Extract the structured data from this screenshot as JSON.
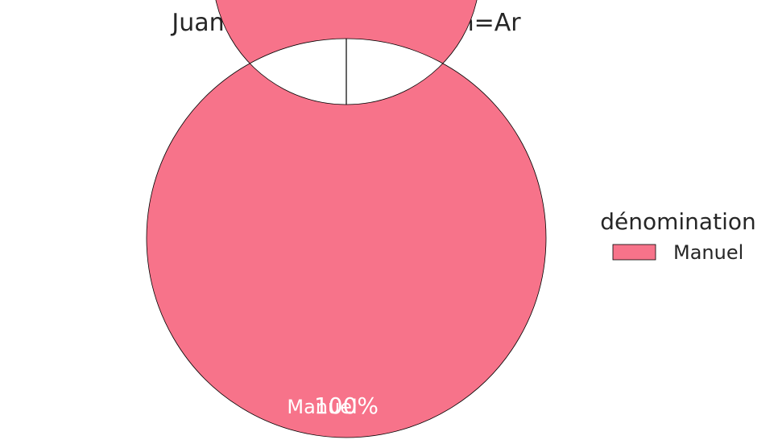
{
  "chart_data": {
    "type": "pie",
    "donut": true,
    "title": "Juan Manuel Leguizamón=Ar",
    "legend": {
      "title": "dénomination",
      "placement": "right"
    },
    "slices": [
      {
        "label": "Manuel",
        "value": 100,
        "percent_label": "100%",
        "color": "#f7738a"
      }
    ]
  }
}
